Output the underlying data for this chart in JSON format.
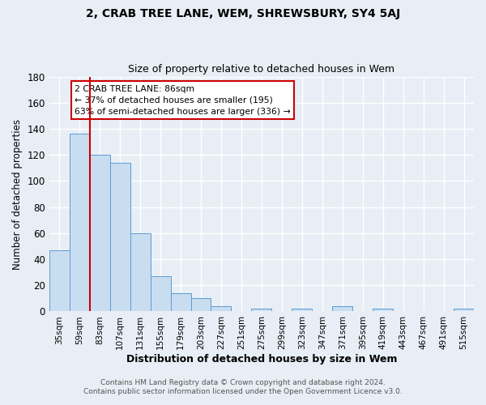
{
  "title": "2, CRAB TREE LANE, WEM, SHREWSBURY, SY4 5AJ",
  "subtitle": "Size of property relative to detached houses in Wem",
  "xlabel": "Distribution of detached houses by size in Wem",
  "ylabel": "Number of detached properties",
  "footer_line1": "Contains HM Land Registry data © Crown copyright and database right 2024.",
  "footer_line2": "Contains public sector information licensed under the Open Government Licence v3.0.",
  "bar_labels": [
    "35sqm",
    "59sqm",
    "83sqm",
    "107sqm",
    "131sqm",
    "155sqm",
    "179sqm",
    "203sqm",
    "227sqm",
    "251sqm",
    "275sqm",
    "299sqm",
    "323sqm",
    "347sqm",
    "371sqm",
    "395sqm",
    "419sqm",
    "443sqm",
    "467sqm",
    "491sqm",
    "515sqm"
  ],
  "bar_values": [
    47,
    136,
    120,
    114,
    60,
    27,
    14,
    10,
    4,
    0,
    2,
    0,
    2,
    0,
    4,
    0,
    2,
    0,
    0,
    0,
    2
  ],
  "bar_color": "#c9ddf0",
  "bar_edge_color": "#5b9bd5",
  "background_color": "#e8eef5",
  "grid_color": "#d0d8e8",
  "ylim": [
    0,
    180
  ],
  "yticks": [
    0,
    20,
    40,
    60,
    80,
    100,
    120,
    140,
    160,
    180
  ],
  "annotation_title": "2 CRAB TREE LANE: 86sqm",
  "annotation_line1": "← 37% of detached houses are smaller (195)",
  "annotation_line2": "63% of semi-detached houses are larger (336) →"
}
